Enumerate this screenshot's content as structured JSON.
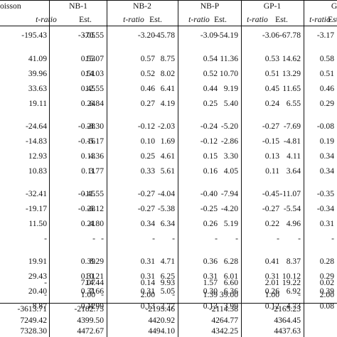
{
  "table": {
    "group_headers": [
      "oisson",
      "NB-1",
      "NB-2",
      "NB-P",
      "GP-1",
      "G"
    ],
    "sub_headers": [
      "t-ratio",
      "Est.",
      "t-ratio",
      "Est.",
      "t-ratio",
      "Est.",
      "t-ratio",
      "Est.",
      "t-ratio",
      "Est."
    ],
    "rows": [
      [
        "-195.43",
        "-3.05",
        "-70.55",
        "-3.20",
        "-45.78",
        "-3.09",
        "-54.19",
        "-3.06",
        "-67.78",
        "-3.17"
      ],
      [
        "41.09",
        "0.53",
        "15.07",
        "0.57",
        "8.75",
        "0.54",
        "11.36",
        "0.53",
        "14.62",
        "0.58"
      ],
      [
        "39.96",
        "0.51",
        "14.03",
        "0.52",
        "8.02",
        "0.52",
        "10.70",
        "0.51",
        "13.29",
        "0.51"
      ],
      [
        "33.63",
        "0.45",
        "12.55",
        "0.46",
        "6.41",
        "0.44",
        "9.19",
        "0.45",
        "11.65",
        "0.46"
      ],
      [
        "19.11",
        "0.24",
        "6.84",
        "0.27",
        "4.19",
        "0.25",
        "5.40",
        "0.24",
        "6.55",
        "0.29"
      ],
      [
        "-24.64",
        "-0.28",
        "-8.30",
        "-0.12",
        "-2.03",
        "-0.24",
        "-5.20",
        "-0.27",
        "-7.69",
        "-0.08"
      ],
      [
        "-14.83",
        "-0.16",
        "-5.17",
        "0.10",
        "1.69",
        "-0.12",
        "-2.86",
        "-0.15",
        "-4.81",
        "0.19"
      ],
      [
        "12.93",
        "0.13",
        "4.36",
        "0.25",
        "4.61",
        "0.15",
        "3.30",
        "0.13",
        "4.11",
        "0.34"
      ],
      [
        "10.83",
        "0.11",
        "3.77",
        "0.33",
        "5.61",
        "0.16",
        "4.05",
        "0.11",
        "3.64",
        "0.34"
      ],
      [
        "-32.41",
        "-0.45",
        "-11.55",
        "-0.27",
        "-4.04",
        "-0.40",
        "-7.94",
        "-0.45",
        "-11.07",
        "-0.35"
      ],
      [
        "-19.17",
        "-0.28",
        "-6.12",
        "-0.27",
        "-5.38",
        "-0.25",
        "-4.20",
        "-0.27",
        "-5.54",
        "-0.34"
      ],
      [
        "11.50",
        "0.21",
        "4.80",
        "0.34",
        "6.34",
        "0.26",
        "5.19",
        "0.22",
        "4.96",
        "0.31"
      ],
      [
        "-",
        "-",
        "-",
        "-",
        "-",
        "-",
        "-",
        "-",
        "-",
        "-"
      ],
      [
        "19.91",
        "0.39",
        "8.29",
        "0.31",
        "4.71",
        "0.36",
        "6.28",
        "0.41",
        "8.37",
        "0.28"
      ],
      [
        "29.43",
        "0.31",
        "10.21",
        "0.31",
        "6.25",
        "0.31",
        "6.01",
        "0.31",
        "10.12",
        "0.29"
      ],
      [
        "20.40",
        "0.31",
        "7.66",
        "0.31",
        "5.05",
        "0.30",
        "6.36",
        "0.26",
        "6.92",
        "0.39"
      ],
      [
        "8.87",
        "0.12",
        "4.99",
        "0.13",
        "2.77",
        "0.13",
        "3.99",
        "0.12",
        "4.73",
        "0.08"
      ],
      [
        "-",
        "7.07",
        "14.44",
        "0.14",
        "9.93",
        "1.57",
        "6.60",
        "2.01",
        "19.22",
        "0.02"
      ],
      [
        "-",
        "1.00",
        "-",
        "2.00",
        "-",
        "1.39",
        "39.00",
        "1.00",
        "-",
        "2.00"
      ]
    ],
    "stats_rows": [
      [
        "-3613.71",
        "-2182.75",
        "-2193.46",
        "-2114.38",
        "-2165.23"
      ],
      [
        "7249.42",
        "4399.50",
        "4420.92",
        "4264.77",
        "4364.45"
      ],
      [
        "7328.30",
        "4472.67",
        "4494.10",
        "4342.25",
        "4437.63"
      ]
    ]
  }
}
